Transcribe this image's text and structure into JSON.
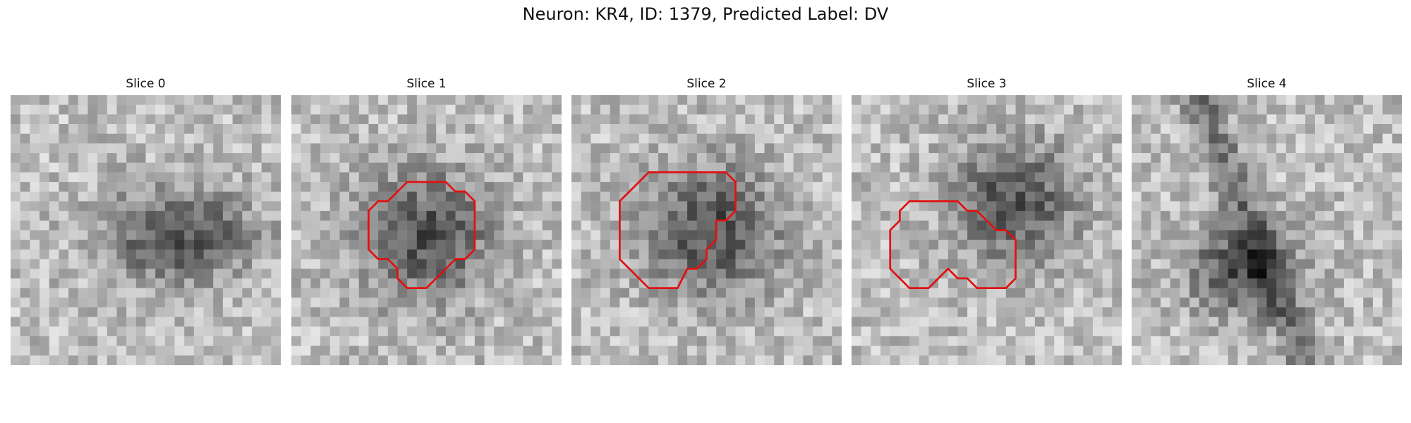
{
  "figure": {
    "title": "Neuron: KR4, ID: 1379, Predicted Label: DV"
  },
  "panels": [
    {
      "title": "Slice 0",
      "seed": 11,
      "blob": [
        0.62,
        0.52,
        0.34,
        0.22
      ],
      "contour": []
    },
    {
      "title": "Slice 1",
      "seed": 23,
      "blob": [
        0.5,
        0.52,
        0.3,
        0.3
      ],
      "contour": [
        [
          14,
          9
        ],
        [
          16,
          9
        ],
        [
          17,
          10
        ],
        [
          18,
          10
        ],
        [
          19,
          11
        ],
        [
          19,
          16
        ],
        [
          18,
          17
        ],
        [
          17,
          17
        ],
        [
          16,
          18
        ],
        [
          14,
          20
        ],
        [
          12,
          20
        ],
        [
          11,
          19
        ],
        [
          11,
          18
        ],
        [
          10,
          17
        ],
        [
          9,
          17
        ],
        [
          8,
          16
        ],
        [
          8,
          12
        ],
        [
          9,
          11
        ],
        [
          10,
          11
        ],
        [
          11,
          10
        ],
        [
          12,
          9
        ]
      ]
    },
    {
      "title": "Slice 2",
      "seed": 37,
      "blob": [
        0.52,
        0.5,
        0.32,
        0.3
      ],
      "contour": [
        [
          10,
          8
        ],
        [
          16,
          8
        ],
        [
          17,
          9
        ],
        [
          17,
          12
        ],
        [
          16,
          13
        ],
        [
          15,
          13
        ],
        [
          15,
          15
        ],
        [
          14,
          16
        ],
        [
          14,
          17
        ],
        [
          13,
          18
        ],
        [
          12,
          18
        ],
        [
          11,
          20
        ],
        [
          8,
          20
        ],
        [
          5,
          17
        ],
        [
          5,
          11
        ],
        [
          8,
          8
        ],
        [
          9,
          8
        ]
      ]
    },
    {
      "title": "Slice 3",
      "seed": 51,
      "blob": [
        0.6,
        0.4,
        0.28,
        0.28
      ],
      "contour": [
        [
          6,
          11
        ],
        [
          11,
          11
        ],
        [
          12,
          12
        ],
        [
          13,
          12
        ],
        [
          14,
          13
        ],
        [
          15,
          14
        ],
        [
          16,
          14
        ],
        [
          17,
          15
        ],
        [
          17,
          19
        ],
        [
          16,
          20
        ],
        [
          13,
          20
        ],
        [
          12,
          19
        ],
        [
          11,
          19
        ],
        [
          10,
          18
        ],
        [
          9,
          19
        ],
        [
          8,
          20
        ],
        [
          6,
          20
        ],
        [
          5,
          19
        ],
        [
          4,
          18
        ],
        [
          4,
          14
        ],
        [
          5,
          13
        ],
        [
          5,
          12
        ]
      ]
    },
    {
      "title": "Slice 4",
      "seed": 67,
      "blob": [
        0.4,
        0.65,
        0.25,
        0.2
      ],
      "contour": []
    }
  ],
  "colors": {
    "contour": "#e11111",
    "text": "#111111"
  }
}
